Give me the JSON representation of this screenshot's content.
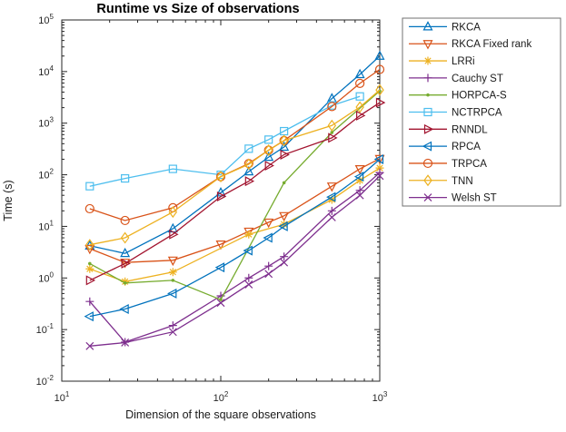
{
  "chart_data": {
    "type": "line",
    "title": "Runtime vs Size of observations",
    "xlabel": "Dimension of the square observations",
    "ylabel": "Time (s)",
    "x_scale": "log",
    "y_scale": "log",
    "x_range_exponents": [
      1,
      3
    ],
    "y_range_exponents": [
      -2,
      5
    ],
    "x_tick_exponents": [
      1,
      2,
      3
    ],
    "y_tick_exponents": [
      -2,
      -1,
      0,
      1,
      2,
      3,
      4,
      5
    ],
    "grid": false,
    "legend_position": "outside-right",
    "axis_color": "#262626",
    "series": [
      {
        "name": "RKCA",
        "color": "#0072BD",
        "marker": "triangle-up",
        "x": [
          15,
          25,
          50,
          100,
          150,
          200,
          250,
          500,
          750,
          1000
        ],
        "y": [
          4.2,
          3,
          9,
          45,
          115,
          220,
          345,
          3000,
          8800,
          20000
        ]
      },
      {
        "name": "RKCA Fixed rank",
        "color": "#D95319",
        "marker": "triangle-down",
        "x": [
          15,
          25,
          50,
          100,
          150,
          200,
          250,
          500,
          750,
          1000
        ],
        "y": [
          3.7,
          2,
          2.2,
          4.5,
          8,
          12,
          16,
          60,
          130,
          205
        ]
      },
      {
        "name": "LRRi",
        "color": "#EDB120",
        "marker": "asterisk",
        "x": [
          15,
          25,
          50,
          150,
          250,
          500,
          750,
          1000
        ],
        "y": [
          1.5,
          0.85,
          1.3,
          7,
          11,
          33,
          78,
          135
        ]
      },
      {
        "name": "Cauchy ST",
        "color": "#7E2F8E",
        "marker": "plus",
        "x": [
          15,
          25,
          50,
          100,
          150,
          200,
          250,
          500,
          750,
          1000
        ],
        "y": [
          0.35,
          0.057,
          0.12,
          0.45,
          1.0,
          1.7,
          2.6,
          20,
          50,
          110
        ]
      },
      {
        "name": "HORPCA-S",
        "color": "#77AC30",
        "marker": "dot",
        "x": [
          15,
          25,
          50,
          100,
          250,
          500,
          1000
        ],
        "y": [
          1.9,
          0.8,
          0.9,
          0.38,
          70,
          660,
          4200
        ]
      },
      {
        "name": "NCTRPCA",
        "color": "#4DBEEE",
        "marker": "square",
        "x": [
          15,
          25,
          50,
          100,
          150,
          200,
          250,
          500,
          750
        ],
        "y": [
          60,
          85,
          130,
          100,
          320,
          480,
          700,
          2200,
          3300
        ]
      },
      {
        "name": "RNNDL",
        "color": "#A2142F",
        "marker": "triangle-right",
        "x": [
          15,
          25,
          50,
          100,
          150,
          200,
          250,
          500,
          750,
          1000
        ],
        "y": [
          0.9,
          1.9,
          7,
          38,
          75,
          150,
          245,
          520,
          1400,
          2500
        ]
      },
      {
        "name": "RPCA",
        "color": "#0072BD",
        "marker": "triangle-left",
        "x": [
          15,
          25,
          50,
          100,
          150,
          200,
          250,
          500,
          750,
          1000
        ],
        "y": [
          0.18,
          0.25,
          0.5,
          1.6,
          3.4,
          6,
          10,
          37,
          92,
          200
        ]
      },
      {
        "name": "TRPCA",
        "color": "#D95319",
        "marker": "circle",
        "x": [
          15,
          25,
          50,
          100,
          150,
          200,
          250,
          500,
          750,
          1000
        ],
        "y": [
          22,
          13,
          23,
          92,
          165,
          300,
          460,
          2100,
          5900,
          11000
        ]
      },
      {
        "name": "TNN",
        "color": "#EDB120",
        "marker": "diamond",
        "x": [
          15,
          25,
          50,
          100,
          150,
          200,
          250,
          500,
          750,
          1000
        ],
        "y": [
          4.4,
          6,
          19,
          92,
          160,
          300,
          460,
          900,
          2050,
          4400
        ]
      },
      {
        "name": "Welsh ST",
        "color": "#7E2F8E",
        "marker": "x",
        "x": [
          15,
          25,
          50,
          100,
          150,
          200,
          250,
          500,
          750,
          1000
        ],
        "y": [
          0.048,
          0.056,
          0.09,
          0.33,
          0.75,
          1.2,
          2.0,
          15,
          40,
          95
        ]
      }
    ]
  }
}
